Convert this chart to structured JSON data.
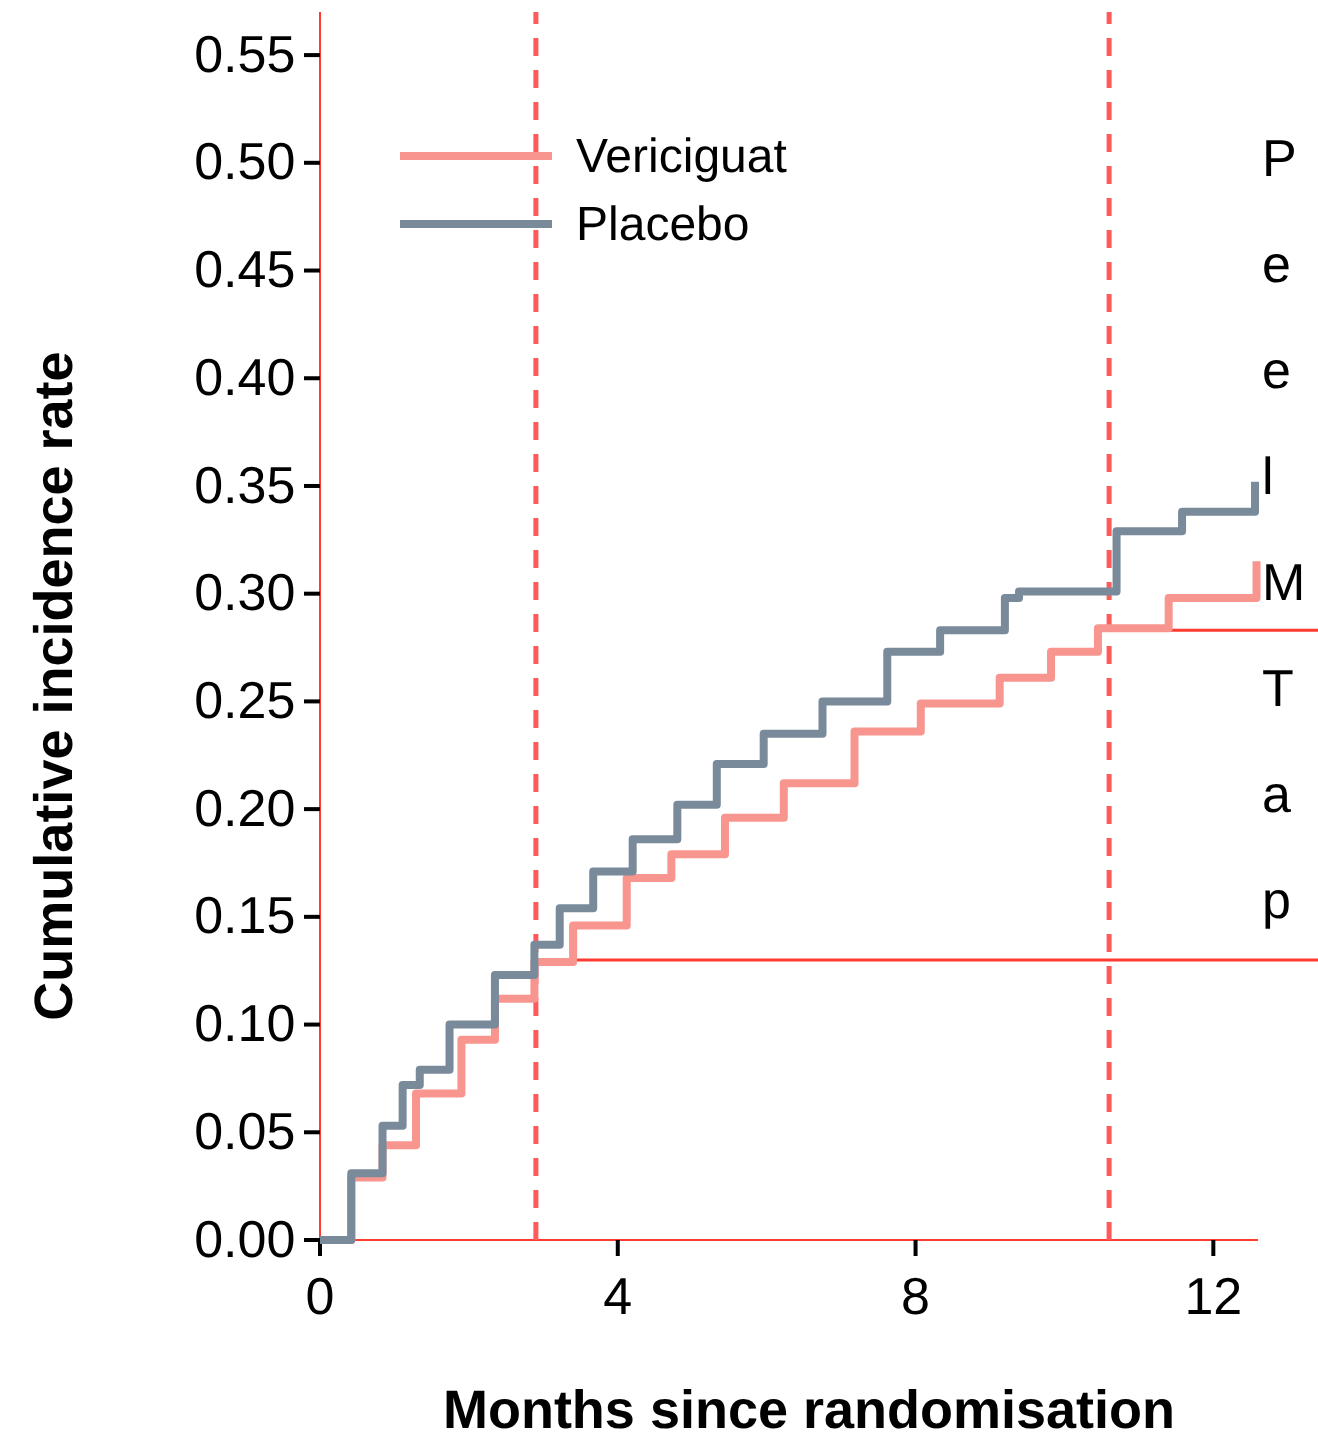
{
  "chart_data": {
    "type": "step",
    "xlabel": "Months since randomisation",
    "ylabel": "Cumulative incidence rate",
    "xlim": [
      0,
      12.6
    ],
    "xticks": [
      0,
      4,
      8,
      12
    ],
    "ylim": [
      0,
      0.57
    ],
    "yticks": [
      {
        "value": 0,
        "label": "0.00"
      },
      {
        "value": 0.05,
        "label": "0.05"
      },
      {
        "value": 0.1,
        "label": "0.10"
      },
      {
        "value": 0.15,
        "label": "0.15"
      },
      {
        "value": 0.2,
        "label": "0.20"
      },
      {
        "value": 0.25,
        "label": "0.25"
      },
      {
        "value": 0.3,
        "label": "0.30"
      },
      {
        "value": 0.35,
        "label": "0.35"
      },
      {
        "value": 0.4,
        "label": "0.40"
      },
      {
        "value": 0.45,
        "label": "0.45"
      },
      {
        "value": 0.5,
        "label": "0.50"
      },
      {
        "value": 0.55,
        "label": "0.55"
      }
    ],
    "legend": "top left",
    "grid": false,
    "series": [
      {
        "name": "Vericiguat",
        "color": "#f7958e",
        "x": [
          0,
          0.42,
          0.84,
          1.29,
          1.9,
          2.35,
          2.88,
          3.4,
          4.12,
          4.72,
          5.44,
          6.23,
          7.18,
          8.07,
          9.13,
          9.82,
          10.45,
          11.4,
          12.58
        ],
        "values": [
          0,
          0.029,
          0.044,
          0.068,
          0.093,
          0.112,
          0.129,
          0.146,
          0.168,
          0.179,
          0.196,
          0.212,
          0.236,
          0.249,
          0.261,
          0.273,
          0.284,
          0.298,
          0.315
        ]
      },
      {
        "name": "Placebo",
        "color": "#798a9a",
        "x": [
          0,
          0.42,
          0.84,
          1.11,
          1.34,
          1.74,
          2.35,
          2.88,
          3.22,
          3.67,
          4.2,
          4.8,
          5.33,
          5.96,
          6.75,
          7.62,
          8.33,
          9.2,
          9.39,
          10.7,
          11.58,
          12.56
        ],
        "values": [
          0,
          0.031,
          0.053,
          0.072,
          0.079,
          0.1,
          0.123,
          0.137,
          0.154,
          0.171,
          0.186,
          0.202,
          0.221,
          0.235,
          0.25,
          0.273,
          0.283,
          0.298,
          0.301,
          0.329,
          0.338,
          0.352
        ]
      }
    ],
    "ref_lines": [
      {
        "axis": "x",
        "value": 2.9,
        "color": "#ff5a5a",
        "line_style": "dashed"
      },
      {
        "axis": "x",
        "value": 10.6,
        "color": "#ff5a5a",
        "line_style": "dashed"
      },
      {
        "axis": "y",
        "value": 0.13,
        "color": "#ff3b30",
        "line_style": "solid"
      },
      {
        "axis": "y",
        "value": 0.283,
        "color": "#ff3b30",
        "line_style": "solid"
      }
    ],
    "annotations": [
      "P",
      "e",
      "e",
      "l",
      "M",
      "T",
      "a",
      "p"
    ]
  }
}
